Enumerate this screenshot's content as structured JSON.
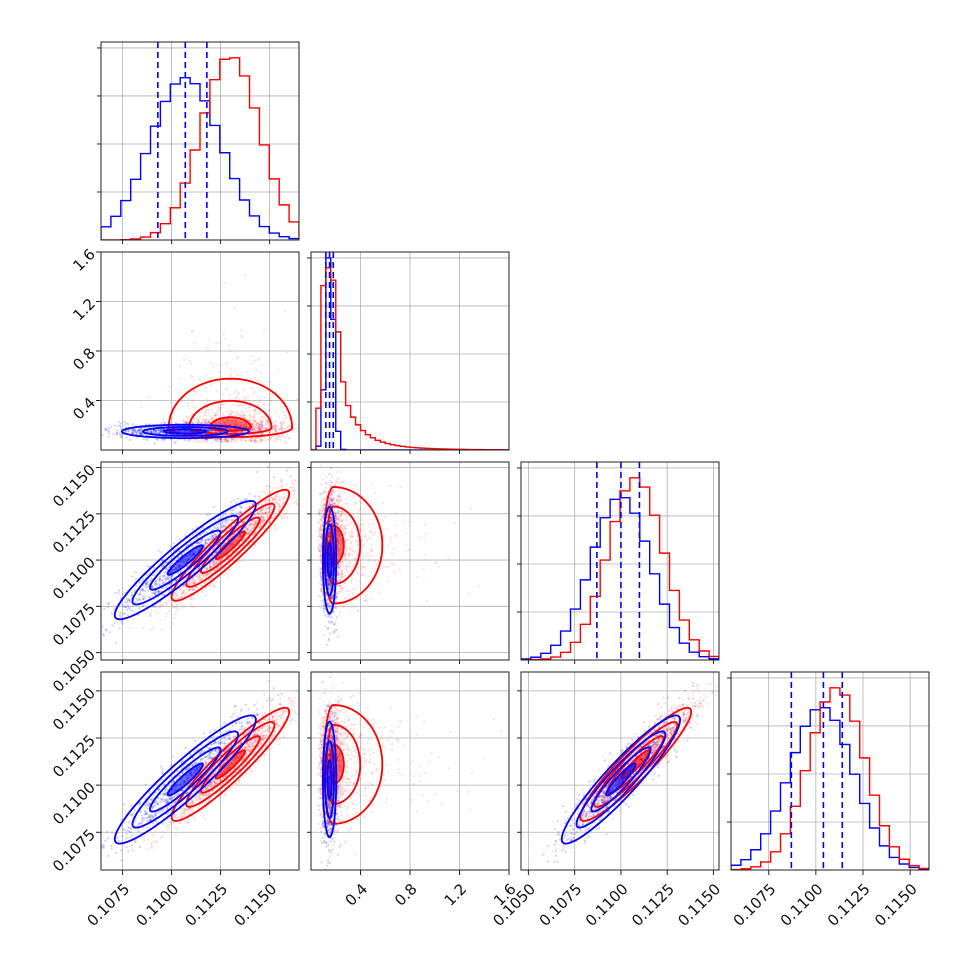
{
  "chart_data": {
    "type": "corner",
    "colors": {
      "model_a": "#0000ff",
      "model_b": "#ff0000"
    },
    "grid": true,
    "legend": "none",
    "parameters": [
      {
        "range": [
          0.1064,
          0.1165
        ],
        "ticks": [
          0.1075,
          0.11,
          0.1125,
          0.115
        ],
        "tick_labels": [
          "0.1075",
          "0.1100",
          "0.1125",
          "0.1150"
        ],
        "blue": {
          "mean": 0.1107,
          "sd": 0.0018,
          "quantiles": [
            0.1093,
            0.1107,
            0.1118
          ]
        },
        "red": {
          "mean": 0.113,
          "sd": 0.0015
        }
      },
      {
        "range": [
          0.0,
          1.6
        ],
        "ticks": [
          0.4,
          0.8,
          1.2,
          1.6
        ],
        "tick_labels": [
          "0.4",
          "0.8",
          "1.2",
          "1.6"
        ],
        "blue": {
          "mean": 0.15,
          "sd": 0.03,
          "quantiles": [
            0.12,
            0.15,
            0.18
          ]
        },
        "red": {
          "mean": 0.18,
          "sd": 0.04
        }
      },
      {
        "range": [
          0.1046,
          0.1153
        ],
        "ticks": [
          0.105,
          0.1075,
          0.11,
          0.1125,
          0.115
        ],
        "tick_labels": [
          "0.1050",
          "0.1075",
          "0.1100",
          "0.1125",
          "0.1150"
        ],
        "blue": {
          "mean": 0.11,
          "sd": 0.0016,
          "quantiles": [
            0.1087,
            0.11,
            0.111
          ]
        },
        "red": {
          "mean": 0.1108,
          "sd": 0.0015
        }
      },
      {
        "range": [
          0.1055,
          0.116
        ],
        "ticks": [
          0.1075,
          0.11,
          0.1125,
          0.115
        ],
        "tick_labels": [
          "0.1075",
          "0.1100",
          "0.1125",
          "0.1150"
        ],
        "blue": {
          "mean": 0.1103,
          "sd": 0.0017,
          "quantiles": [
            0.1087,
            0.1104,
            0.1114
          ]
        },
        "red": {
          "mean": 0.1111,
          "sd": 0.0015
        }
      }
    ]
  }
}
